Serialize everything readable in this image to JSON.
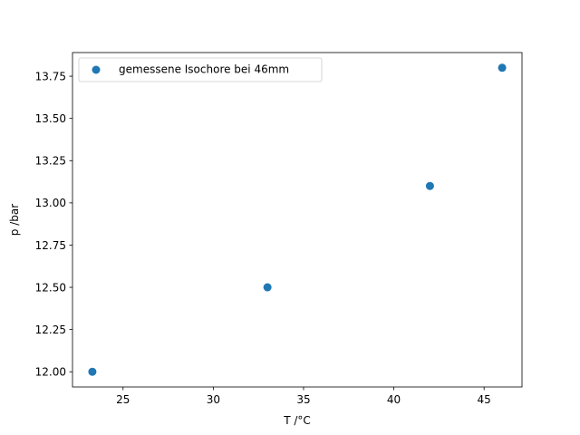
{
  "chart_data": {
    "type": "scatter",
    "xlabel": "T /°C",
    "ylabel": "p /bar",
    "xlim": [
      22.2,
      47.1
    ],
    "ylim": [
      11.91,
      13.89
    ],
    "xticks": [
      25,
      30,
      35,
      40,
      45
    ],
    "xtick_labels": [
      "25",
      "30",
      "35",
      "40",
      "45"
    ],
    "yticks": [
      12.0,
      12.25,
      12.5,
      12.75,
      13.0,
      13.25,
      13.5,
      13.75
    ],
    "ytick_labels": [
      "12.00",
      "12.25",
      "12.50",
      "12.75",
      "13.00",
      "13.25",
      "13.50",
      "13.75"
    ],
    "grid": false,
    "legend_position": "upper-left",
    "series": [
      {
        "name": "gemessene Isochore bei 46mm",
        "color": "#1f77b4",
        "x": [
          23.3,
          33.0,
          42.0,
          46.0
        ],
        "y": [
          12.0,
          12.5,
          13.1,
          13.8
        ]
      }
    ]
  }
}
